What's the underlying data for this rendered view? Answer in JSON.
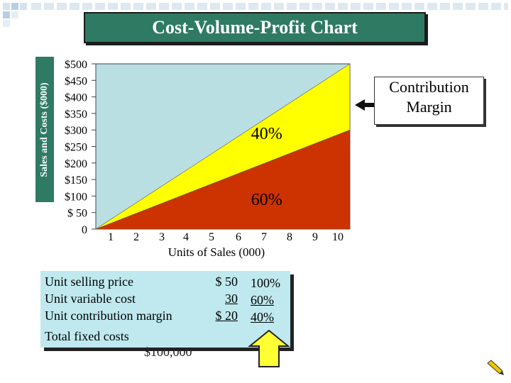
{
  "chart_data": {
    "type": "area",
    "title": "Cost-Volume-Profit Chart",
    "xlabel": "Units of Sales (000)",
    "ylabel": "Sales and Costs ($000)",
    "x_ticks": [
      "1",
      "2",
      "3",
      "4",
      "5",
      "6",
      "7",
      "8",
      "9",
      "10"
    ],
    "y_ticks": [
      "$500",
      "$450",
      "$400",
      "$350",
      "$300",
      "$250",
      "$200",
      "$150",
      "$100",
      "$ 50",
      "0"
    ],
    "xlim": [
      0,
      10
    ],
    "ylim": [
      0,
      500
    ],
    "series": [
      {
        "x": [
          0,
          10
        ],
        "y": [
          0,
          500
        ],
        "color": "#ffff00"
      },
      {
        "x": [
          0,
          10
        ],
        "y": [
          0,
          300
        ],
        "color": "#cc3300"
      }
    ],
    "annotations": [
      {
        "text": "40%",
        "x": 6.0,
        "y": 290
      },
      {
        "text": "60%",
        "x": 6.0,
        "y": 90
      }
    ],
    "callout": [
      "Contribution",
      "Margin"
    ],
    "colors": {
      "plot_bg": "#b9dfe3",
      "sales_area": "#ffff00",
      "variable_cost_area": "#cc3300",
      "header": "#2f7a63"
    }
  },
  "info_panel": {
    "rows": [
      {
        "label": "Unit selling price",
        "amount": "$ 50",
        "percent": "100%"
      },
      {
        "label": "Unit variable cost",
        "amount": "30",
        "percent": "60%"
      },
      {
        "label": "Unit contribution margin",
        "amount": "$ 20",
        "percent": "40%"
      }
    ],
    "fixed_label": "Total fixed costs",
    "fixed_value": "$100,000"
  }
}
